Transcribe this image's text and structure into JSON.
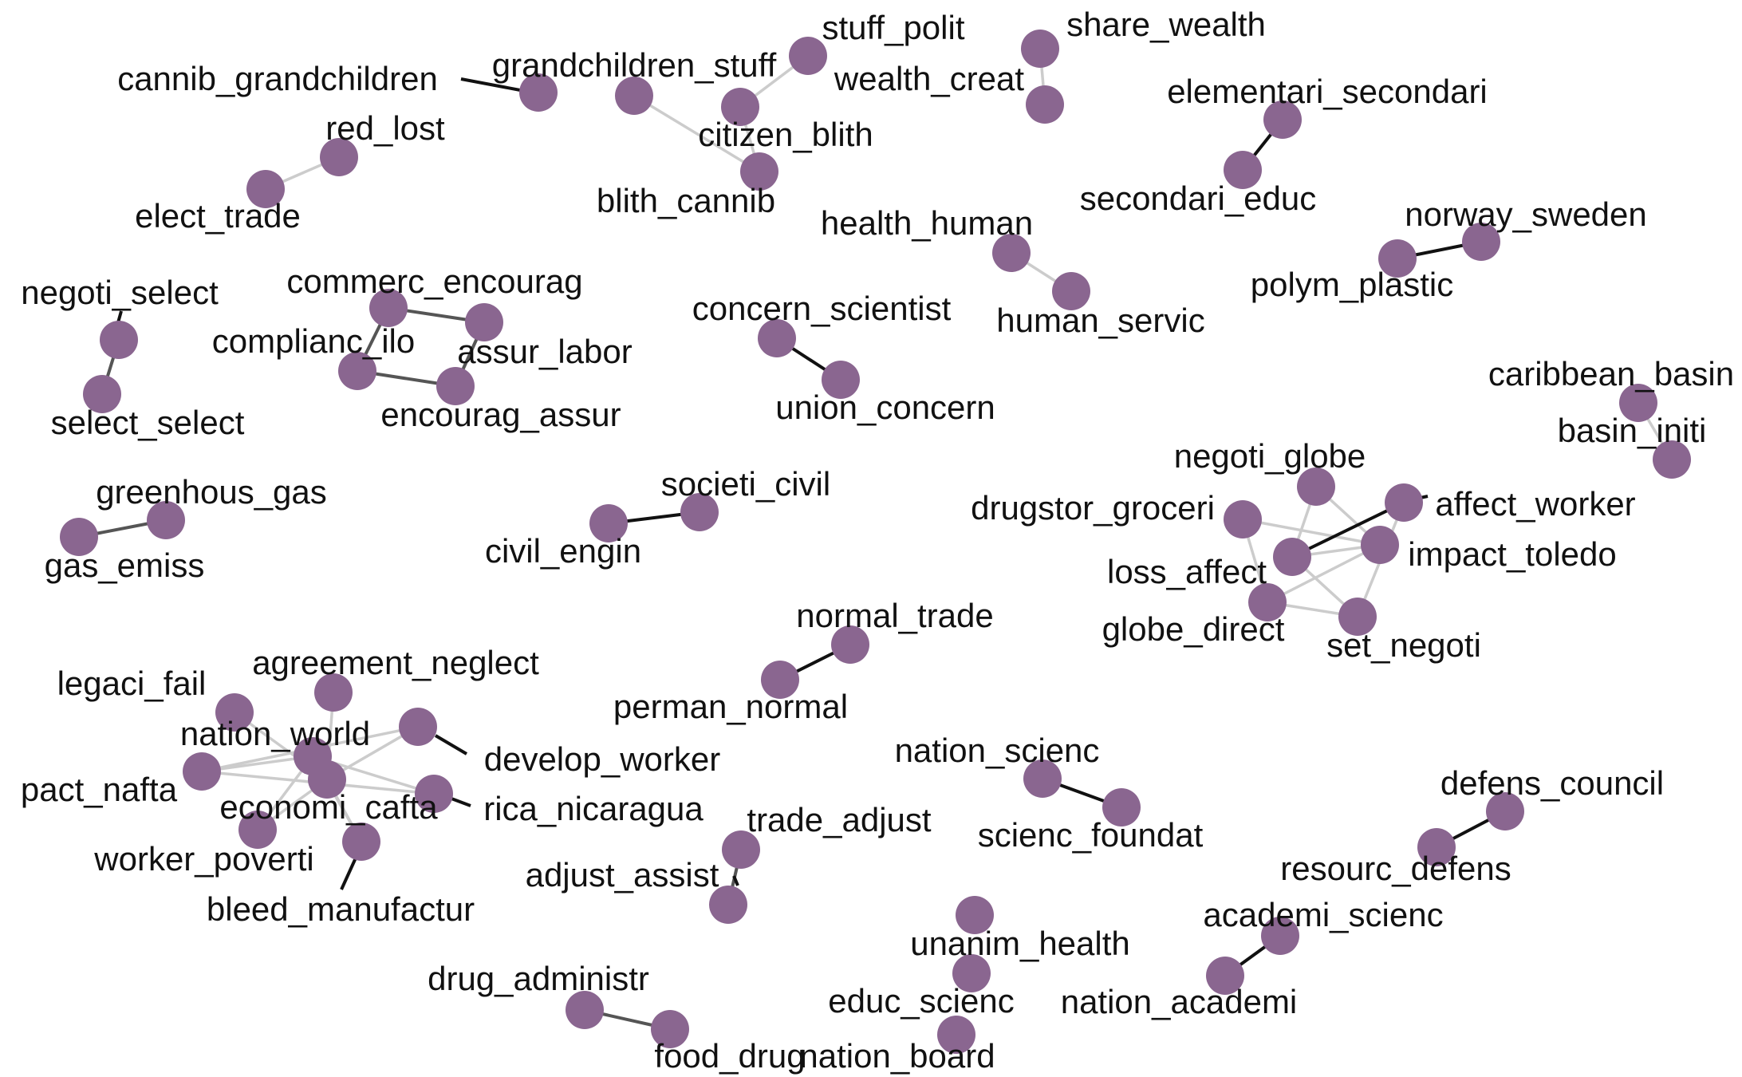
{
  "node_color": "#8a6690",
  "edge_colors": {
    "strong": "#111111",
    "medium": "#555555",
    "weak": "#cccccc"
  },
  "nodes": [
    {
      "id": "cannib_grandchildren",
      "label": "cannib_grandchildren"
    },
    {
      "id": "grandchildren_stuff",
      "label": "grandchildren_stuff"
    },
    {
      "id": "stuff_polit",
      "label": "stuff_polit"
    },
    {
      "id": "citizen_blith",
      "label": "citizen_blith"
    },
    {
      "id": "blith_cannib",
      "label": "blith_cannib"
    },
    {
      "id": "share_wealth",
      "label": "share_wealth"
    },
    {
      "id": "wealth_creat",
      "label": "wealth_creat"
    },
    {
      "id": "elementari_secondari",
      "label": "elementari_secondari"
    },
    {
      "id": "secondari_educ",
      "label": "secondari_educ"
    },
    {
      "id": "red_lost",
      "label": "red_lost"
    },
    {
      "id": "elect_trade",
      "label": "elect_trade"
    },
    {
      "id": "health_human",
      "label": "health_human"
    },
    {
      "id": "human_servic",
      "label": "human_servic"
    },
    {
      "id": "norway_sweden",
      "label": "norway_sweden"
    },
    {
      "id": "polym_plastic",
      "label": "polym_plastic"
    },
    {
      "id": "negoti_select",
      "label": "negoti_select"
    },
    {
      "id": "select_select",
      "label": "select_select"
    },
    {
      "id": "commerc_encourag",
      "label": "commerc_encourag"
    },
    {
      "id": "complianc_ilo",
      "label": "complianc_ilo"
    },
    {
      "id": "assur_labor",
      "label": "assur_labor"
    },
    {
      "id": "encourag_assur",
      "label": "encourag_assur"
    },
    {
      "id": "concern_scientist",
      "label": "concern_scientist"
    },
    {
      "id": "union_concern",
      "label": "union_concern"
    },
    {
      "id": "caribbean_basin",
      "label": "caribbean_basin"
    },
    {
      "id": "basin_initi",
      "label": "basin_initi"
    },
    {
      "id": "greenhous_gas",
      "label": "greenhous_gas"
    },
    {
      "id": "gas_emiss",
      "label": "gas_emiss"
    },
    {
      "id": "societi_civil",
      "label": "societi_civil"
    },
    {
      "id": "civil_engin",
      "label": "civil_engin"
    },
    {
      "id": "negoti_globe",
      "label": "negoti_globe"
    },
    {
      "id": "drugstor_groceri",
      "label": "drugstor_groceri"
    },
    {
      "id": "affect_worker",
      "label": "affect_worker"
    },
    {
      "id": "impact_toledo",
      "label": "impact_toledo"
    },
    {
      "id": "loss_affect",
      "label": "loss_affect"
    },
    {
      "id": "globe_direct",
      "label": "globe_direct"
    },
    {
      "id": "set_negoti",
      "label": "set_negoti"
    },
    {
      "id": "normal_trade",
      "label": "normal_trade"
    },
    {
      "id": "perman_normal",
      "label": "perman_normal"
    },
    {
      "id": "legaci_fail",
      "label": "legaci_fail"
    },
    {
      "id": "agreement_neglect",
      "label": "agreement_neglect"
    },
    {
      "id": "nation_world",
      "label": "nation_world"
    },
    {
      "id": "develop_worker",
      "label": "develop_worker"
    },
    {
      "id": "pact_nafta",
      "label": "pact_nafta"
    },
    {
      "id": "economi_cafta",
      "label": "economi_cafta"
    },
    {
      "id": "rica_nicaragua",
      "label": "rica_nicaragua"
    },
    {
      "id": "worker_poverti",
      "label": "worker_poverti"
    },
    {
      "id": "bleed_manufactur",
      "label": "bleed_manufactur"
    },
    {
      "id": "nation_scienc",
      "label": "nation_scienc"
    },
    {
      "id": "scienc_foundat",
      "label": "scienc_foundat"
    },
    {
      "id": "defens_council",
      "label": "defens_council"
    },
    {
      "id": "resourc_defens",
      "label": "resourc_defens"
    },
    {
      "id": "trade_adjust",
      "label": "trade_adjust"
    },
    {
      "id": "adjust_assist",
      "label": "adjust_assist"
    },
    {
      "id": "academi_scienc",
      "label": "academi_scienc"
    },
    {
      "id": "nation_academi",
      "label": "nation_academi"
    },
    {
      "id": "unanim_health",
      "label": "unanim_health"
    },
    {
      "id": "educ_scienc",
      "label": "educ_scienc"
    },
    {
      "id": "nation_board",
      "label": "nation_board"
    },
    {
      "id": "drug_administr",
      "label": "drug_administr"
    },
    {
      "id": "food_drug",
      "label": "food_drug"
    }
  ],
  "edges": [
    {
      "source": "grandchildren_stuff",
      "target": "blith_cannib",
      "strength": "weak"
    },
    {
      "source": "blith_cannib",
      "target": "citizen_blith",
      "strength": "weak"
    },
    {
      "source": "citizen_blith",
      "target": "stuff_polit",
      "strength": "weak"
    },
    {
      "source": "share_wealth",
      "target": "wealth_creat",
      "strength": "weak"
    },
    {
      "source": "elementari_secondari",
      "target": "secondari_educ",
      "strength": "strong"
    },
    {
      "source": "red_lost",
      "target": "elect_trade",
      "strength": "weak"
    },
    {
      "source": "health_human",
      "target": "human_servic",
      "strength": "weak"
    },
    {
      "source": "norway_sweden",
      "target": "polym_plastic",
      "strength": "strong"
    },
    {
      "source": "negoti_select",
      "target": "select_select",
      "strength": "medium"
    },
    {
      "source": "commerc_encourag",
      "target": "assur_labor",
      "strength": "medium"
    },
    {
      "source": "commerc_encourag",
      "target": "complianc_ilo",
      "strength": "medium"
    },
    {
      "source": "complianc_ilo",
      "target": "encourag_assur",
      "strength": "medium"
    },
    {
      "source": "assur_labor",
      "target": "encourag_assur",
      "strength": "medium"
    },
    {
      "source": "concern_scientist",
      "target": "union_concern",
      "strength": "strong"
    },
    {
      "source": "caribbean_basin",
      "target": "basin_initi",
      "strength": "weak"
    },
    {
      "source": "greenhous_gas",
      "target": "gas_emiss",
      "strength": "medium"
    },
    {
      "source": "societi_civil",
      "target": "civil_engin",
      "strength": "strong"
    },
    {
      "source": "negoti_globe",
      "target": "impact_toledo",
      "strength": "weak"
    },
    {
      "source": "negoti_globe",
      "target": "loss_affect",
      "strength": "weak"
    },
    {
      "source": "drugstor_groceri",
      "target": "impact_toledo",
      "strength": "weak"
    },
    {
      "source": "drugstor_groceri",
      "target": "globe_direct",
      "strength": "weak"
    },
    {
      "source": "affect_worker",
      "target": "loss_affect",
      "strength": "strong"
    },
    {
      "source": "affect_worker",
      "target": "set_negoti",
      "strength": "weak"
    },
    {
      "source": "impact_toledo",
      "target": "loss_affect",
      "strength": "weak"
    },
    {
      "source": "impact_toledo",
      "target": "globe_direct",
      "strength": "weak"
    },
    {
      "source": "globe_direct",
      "target": "set_negoti",
      "strength": "weak"
    },
    {
      "source": "loss_affect",
      "target": "set_negoti",
      "strength": "weak"
    },
    {
      "source": "normal_trade",
      "target": "perman_normal",
      "strength": "strong"
    },
    {
      "source": "pact_nafta",
      "target": "nation_world",
      "strength": "weak"
    },
    {
      "source": "pact_nafta",
      "target": "develop_worker",
      "strength": "weak"
    },
    {
      "source": "pact_nafta",
      "target": "rica_nicaragua",
      "strength": "weak"
    },
    {
      "source": "legaci_fail",
      "target": "economi_cafta",
      "strength": "weak"
    },
    {
      "source": "agreement_neglect",
      "target": "economi_cafta",
      "strength": "weak"
    },
    {
      "source": "nation_world",
      "target": "rica_nicaragua",
      "strength": "weak"
    },
    {
      "source": "develop_worker",
      "target": "economi_cafta",
      "strength": "weak"
    },
    {
      "source": "economi_cafta",
      "target": "worker_poverti",
      "strength": "weak"
    },
    {
      "source": "economi_cafta",
      "target": "bleed_manufactur",
      "strength": "weak"
    },
    {
      "source": "nation_world",
      "target": "bleed_manufactur",
      "strength": "weak"
    },
    {
      "source": "nation_world",
      "target": "worker_poverti",
      "strength": "weak"
    },
    {
      "source": "nation_scienc",
      "target": "scienc_foundat",
      "strength": "strong"
    },
    {
      "source": "defens_council",
      "target": "resourc_defens",
      "strength": "strong"
    },
    {
      "source": "trade_adjust",
      "target": "adjust_assist",
      "strength": "medium"
    },
    {
      "source": "academi_scienc",
      "target": "nation_academi",
      "strength": "strong"
    },
    {
      "source": "drug_administr",
      "target": "food_drug",
      "strength": "medium"
    }
  ]
}
